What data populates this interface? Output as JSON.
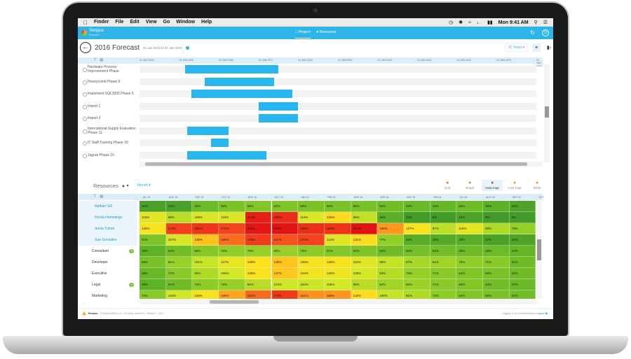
{
  "mac_menu": {
    "app": "Finder",
    "items": [
      "File",
      "Edit",
      "View",
      "Go",
      "Window",
      "Help"
    ],
    "clock": "Mon 9:41 AM"
  },
  "appbar": {
    "brand": "Tempus",
    "brand_sub": "Resource",
    "nav_project": "Project",
    "nav_resource": "Resource"
  },
  "title": {
    "text": "2016 Forecast",
    "range": "01 Jan 2014 to 01 Jan 2024",
    "range_select": "10 Years"
  },
  "gantt": {
    "ticks": [
      "01 JAN 2014",
      "01 JAN 2015",
      "01 JAN 2016",
      "01 JAN 2017",
      "01 JAN 2018",
      "01 JAN 2019",
      "01 JAN 2020",
      "01 JAN 2021",
      "01 JAN 2022",
      "01 JAN 2023",
      "01 JAN 2024"
    ],
    "rows": [
      {
        "label": "Hardware Process Improvement Phase",
        "start": 0.115,
        "end": 0.35
      },
      {
        "label": "Honeycomb Phase 9",
        "start": 0.165,
        "end": 0.34
      },
      {
        "label": "Implement SQL2005 Phase 5",
        "start": 0.13,
        "end": 0.385
      },
      {
        "label": "Import 1",
        "start": 0.3,
        "end": 0.4
      },
      {
        "label": "Import 2",
        "start": 0.3,
        "end": 0.4
      },
      {
        "label": "International Supply Evaluation Phase 11",
        "start": 0.12,
        "end": 0.225
      },
      {
        "label": "IT Staff Training Phase 19",
        "start": 0.18,
        "end": 0.225
      },
      {
        "label": "Jaguar Phase 10",
        "start": 0.12,
        "end": 0.32
      }
    ]
  },
  "resources": {
    "title": "Resources",
    "mode": "Month",
    "views": [
      {
        "name": "Grid",
        "icon": "grid-icon",
        "active": false
      },
      {
        "name": "Graph",
        "icon": "graph-icon",
        "active": false
      },
      {
        "name": "Heat map",
        "icon": "heatmap-icon",
        "active": true
      },
      {
        "name": "Cost map",
        "icon": "costmap-icon",
        "active": false
      },
      {
        "name": "Delta",
        "icon": "delta-icon",
        "active": false
      }
    ]
  },
  "heatmap": {
    "months": [
      "JUL 15",
      "AUG 15",
      "SEP 15",
      "OCT 15",
      "NOV 15",
      "DEC 15",
      "JAN 16",
      "FEB 16",
      "MAR 16",
      "APR 16",
      "MAY 16",
      "JUN 16",
      "JUL 16",
      "AUG 16",
      "SEP 16",
      "OCT"
    ],
    "rows": [
      {
        "label": "Nathan Gill",
        "kind": "person",
        "values": [
          16,
          18,
          49,
          60,
          66,
          64,
          59,
          58,
          58,
          54,
          46,
          44,
          50,
          36,
          20
        ]
      },
      {
        "label": "Nicola Hemmings",
        "kind": "person",
        "values": [
          115,
          95,
          109,
          110,
          194,
          185,
          110,
          132,
          98,
          34,
          10,
          8,
          19,
          8,
          8
        ]
      },
      {
        "label": "Sonia Turner",
        "kind": "person",
        "values": [
          126,
          173,
          180,
          172,
          198,
          200,
          184,
          180,
          201,
          150,
          127,
          97,
          116,
          90,
          79
        ]
      },
      {
        "label": "Sue Gonzales",
        "kind": "person",
        "values": [
          61,
          107,
          138,
          160,
          176,
          167,
          172,
          113,
          131,
          77,
          33,
          28,
          33,
          17,
          20
        ]
      },
      {
        "label": "Consultant",
        "kind": "group",
        "badge": "3",
        "values": [
          39,
          54,
          68,
          75,
          79,
          80,
          72,
          67,
          62,
          52,
          56,
          53,
          49,
          48,
          44
        ]
      },
      {
        "label": "Developer",
        "kind": "group",
        "values": [
          58,
          81,
          101,
          117,
          129,
          138,
          125,
          126,
          112,
          99,
          87,
          84,
          76,
          71,
          51
        ]
      },
      {
        "label": "Executive",
        "kind": "group",
        "values": [
          46,
          71,
          90,
          105,
          128,
          137,
          123,
          120,
          106,
          93,
          79,
          71,
          64,
          60,
          52
        ]
      },
      {
        "label": "Legal",
        "kind": "group",
        "badge": "3",
        "values": [
          38,
          51,
          74,
          79,
          94,
          103,
          102,
          105,
          95,
          84,
          82,
          71,
          65,
          54,
          47
        ]
      },
      {
        "label": "Marketing",
        "kind": "group",
        "values": [
          70,
          104,
          125,
          146,
          161,
          178,
          151,
          150,
          132,
          100,
          91,
          74,
          64,
          60,
          54
        ]
      }
    ]
  },
  "footer": {
    "brand": "Tempus",
    "copyright": "ProSymmetry LLC. All rights reserved. Version 7.16.0",
    "login_prefix": "Logged in as",
    "user": "Administrator",
    "logout": "Logout"
  }
}
